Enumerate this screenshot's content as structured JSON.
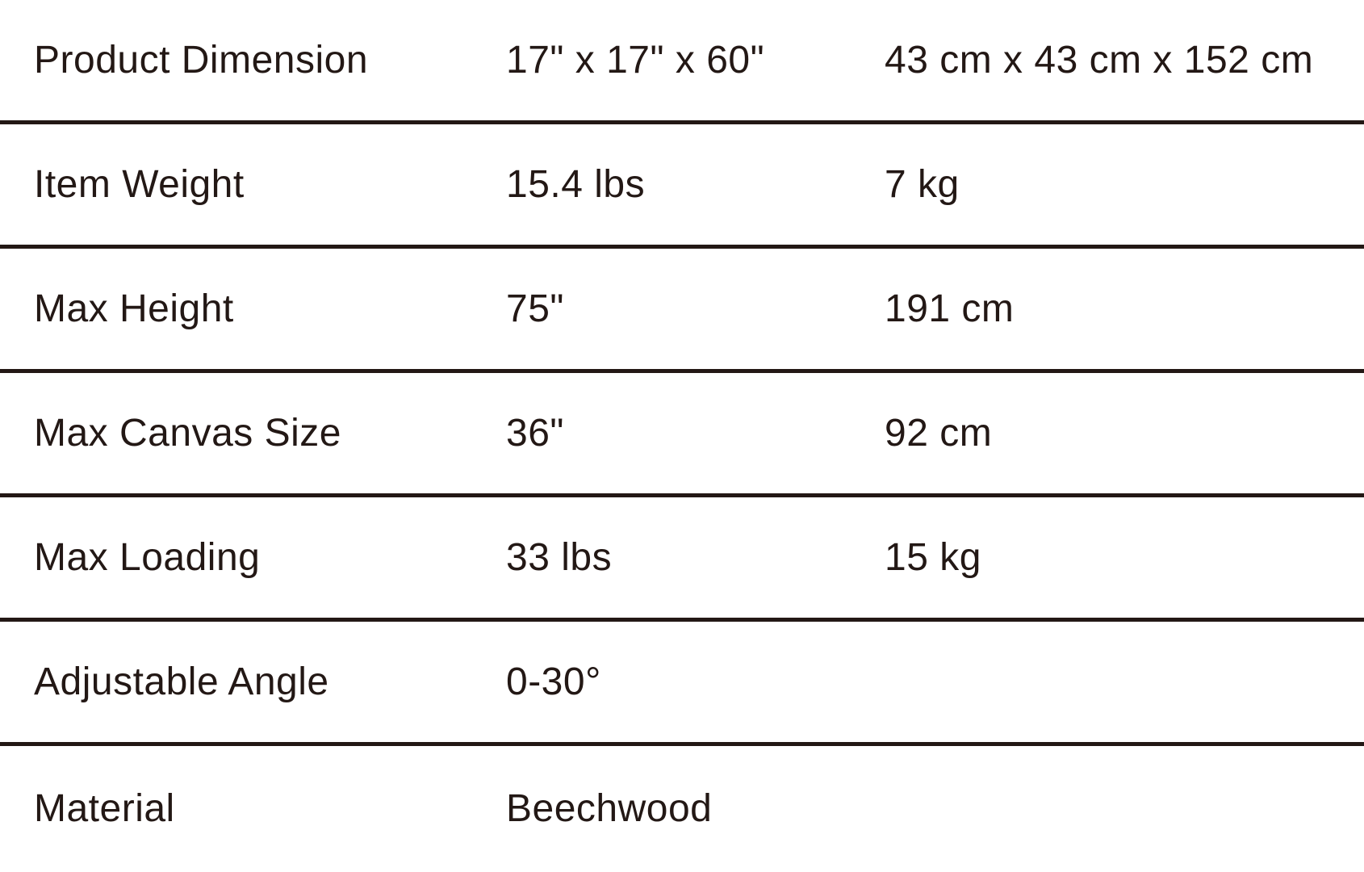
{
  "table": {
    "description": "Product specification table",
    "text_color": "#231815",
    "background_color": "#ffffff",
    "divider_color": "#231815",
    "columns": [
      "attribute",
      "imperial_value",
      "metric_value"
    ],
    "rows": [
      {
        "label": "Product Dimension",
        "imperial": "17\" x 17\" x 60\"",
        "metric": "43 cm x 43 cm x 152 cm"
      },
      {
        "label": "Item Weight",
        "imperial": "15.4 lbs",
        "metric": "7 kg"
      },
      {
        "label": "Max Height",
        "imperial": "75\"",
        "metric": "191 cm"
      },
      {
        "label": "Max Canvas Size",
        "imperial": "36\"",
        "metric": "92 cm"
      },
      {
        "label": "Max Loading",
        "imperial": "33 lbs",
        "metric": "15 kg"
      },
      {
        "label": "Adjustable Angle",
        "imperial": "0-30°",
        "metric": ""
      },
      {
        "label": "Material",
        "imperial": "Beechwood",
        "metric": ""
      }
    ]
  }
}
